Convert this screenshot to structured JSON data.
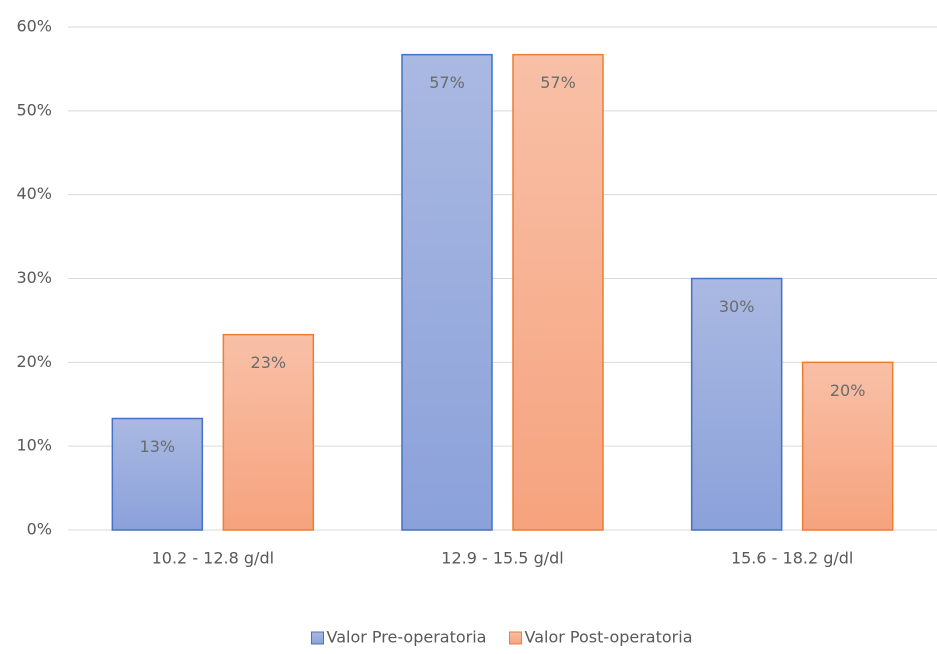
{
  "chart_data": {
    "type": "bar",
    "categories": [
      "10.2 - 12.8 g/dl",
      "12.9 - 15.5 g/dl",
      "15.6 - 18.2 g/dl"
    ],
    "series": [
      {
        "name": "Valor Pre-operatoria",
        "color": "#4472c4",
        "values": [
          13.3,
          56.7,
          30
        ],
        "value_labels": [
          "13%",
          "57%",
          "30%"
        ]
      },
      {
        "name": "Valor Post-operatoria",
        "color": "#ed7d31",
        "values": [
          23.3,
          56.7,
          20
        ],
        "value_labels": [
          "23%",
          "57%",
          "20%"
        ]
      }
    ],
    "ylim": [
      0,
      60
    ],
    "yticks": [
      {
        "value": 0,
        "label": "0%"
      },
      {
        "value": 10,
        "label": "10%"
      },
      {
        "value": 20,
        "label": "20%"
      },
      {
        "value": 30,
        "label": "30%"
      },
      {
        "value": 40,
        "label": "40%"
      },
      {
        "value": 50,
        "label": "50%"
      },
      {
        "value": 60,
        "label": "60%"
      }
    ],
    "grid": true,
    "legend": "bottom"
  }
}
